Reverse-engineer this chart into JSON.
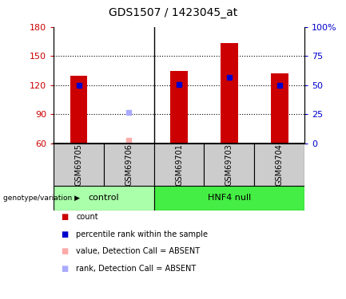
{
  "title": "GDS1507 / 1423045_at",
  "samples": [
    "GSM69705",
    "GSM69706",
    "GSM69701",
    "GSM69703",
    "GSM69704"
  ],
  "bar_values": [
    130,
    null,
    135,
    163,
    132
  ],
  "bar_color": "#cc0000",
  "blue_square_values": [
    120,
    null,
    121,
    128,
    120
  ],
  "blue_square_color": "#0000cc",
  "absent_value_values": [
    null,
    63,
    null,
    null,
    null
  ],
  "absent_value_color": "#ffaaaa",
  "absent_rank_values": [
    null,
    92,
    null,
    null,
    null
  ],
  "absent_rank_color": "#aaaaff",
  "ylim_left": [
    60,
    180
  ],
  "ylim_right": [
    0,
    100
  ],
  "yticks_left": [
    60,
    90,
    120,
    150,
    180
  ],
  "yticks_right": [
    0,
    25,
    50,
    75,
    100
  ],
  "ytick_labels_right": [
    "0",
    "25",
    "50",
    "75",
    "100%"
  ],
  "ytick_color_left": "#cc0000",
  "ytick_color_right": "#0000cc",
  "groups": [
    {
      "label": "control",
      "color": "#aaffaa",
      "start": 0,
      "end": 1
    },
    {
      "label": "HNF4 null",
      "color": "#44ee44",
      "start": 2,
      "end": 4
    }
  ],
  "group_label_prefix": "genotype/variation",
  "legend_items": [
    {
      "label": "count",
      "color": "#cc0000"
    },
    {
      "label": "percentile rank within the sample",
      "color": "#0000cc"
    },
    {
      "label": "value, Detection Call = ABSENT",
      "color": "#ffaaaa"
    },
    {
      "label": "rank, Detection Call = ABSENT",
      "color": "#aaaaff"
    }
  ],
  "bar_width": 0.35,
  "bar_bottom": 60,
  "grid_yticks": [
    90,
    120,
    150
  ],
  "sample_label_color": "#cccccc",
  "background_color": "#ffffff"
}
